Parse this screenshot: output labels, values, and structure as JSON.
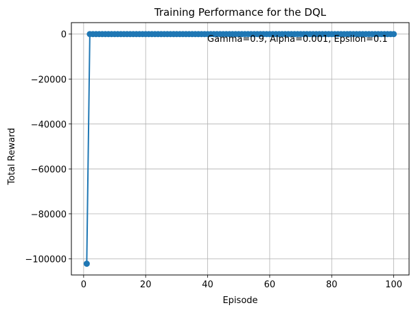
{
  "chart_data": {
    "type": "line",
    "title": "Training Performance for the DQL",
    "xlabel": "Episode",
    "ylabel": "Total Reward",
    "xlim": [
      -3.95,
      104.95
    ],
    "ylim": [
      -107200,
      5100
    ],
    "x_ticks": [
      0,
      20,
      40,
      60,
      80,
      100
    ],
    "y_ticks": [
      0,
      -20000,
      -40000,
      -60000,
      -80000,
      -100000
    ],
    "y_tick_labels": [
      "0",
      "−20000",
      "−40000",
      "−60000",
      "−80000",
      "−100000"
    ],
    "grid": true,
    "marker": "circle",
    "color": "#1f77b4",
    "annotation": "Gamma=0.9, Alpha=0.001, Epsilon=0.1",
    "series": [
      {
        "x_start": 1,
        "x_end": 100,
        "values": [
          -102200,
          0,
          0,
          0,
          0,
          0,
          0,
          0,
          0,
          0,
          0,
          0,
          0,
          0,
          0,
          0,
          0,
          0,
          0,
          0,
          0,
          0,
          0,
          0,
          0,
          0,
          0,
          0,
          0,
          0,
          0,
          0,
          0,
          0,
          0,
          0,
          0,
          0,
          0,
          0,
          0,
          0,
          0,
          0,
          0,
          0,
          0,
          0,
          0,
          0,
          0,
          0,
          0,
          0,
          0,
          0,
          0,
          0,
          0,
          0,
          0,
          0,
          0,
          0,
          0,
          0,
          0,
          0,
          0,
          0,
          0,
          0,
          0,
          0,
          0,
          0,
          0,
          0,
          0,
          0,
          0,
          0,
          0,
          0,
          0,
          0,
          0,
          0,
          0,
          0,
          0,
          0,
          0,
          0,
          0,
          0,
          0,
          0,
          0,
          0
        ]
      }
    ]
  }
}
